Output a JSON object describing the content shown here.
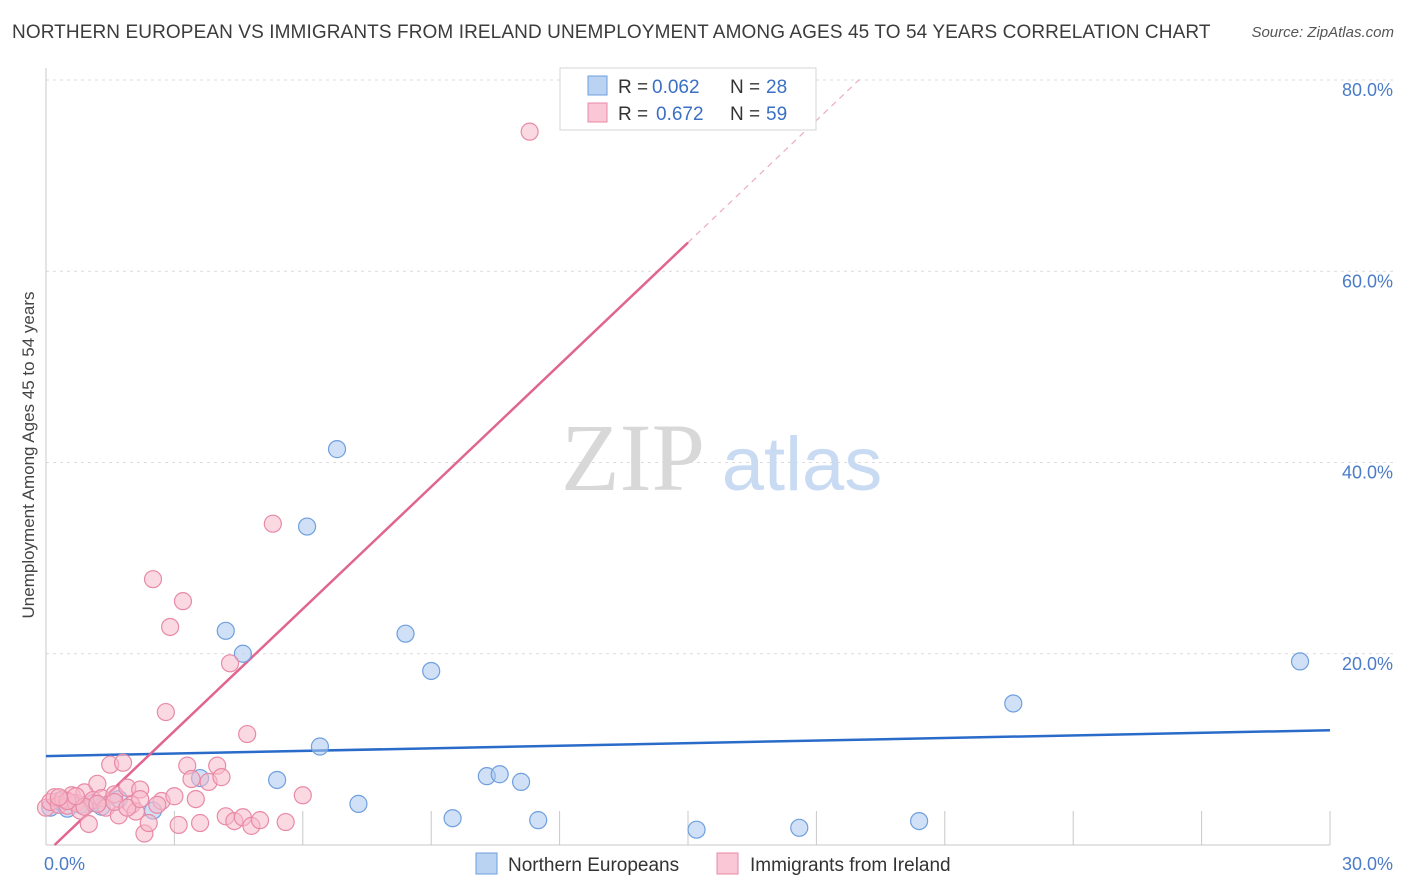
{
  "title": "NORTHERN EUROPEAN VS IMMIGRANTS FROM IRELAND UNEMPLOYMENT AMONG AGES 45 TO 54 YEARS CORRELATION CHART",
  "source": "Source: ZipAtlas.com",
  "watermark": {
    "zip": "ZIP",
    "atlas": "atlas"
  },
  "colors": {
    "blue_fill": "#a9c8f0",
    "blue_stroke": "#6f9fde",
    "blue_line": "#2a6bc9",
    "pink_fill": "#f7b9cb",
    "pink_stroke": "#e88aa6",
    "pink_line": "#e06590",
    "grid": "#dcdcdc",
    "tick_text": "#4a7cc7"
  },
  "legend": {
    "series1": {
      "r_label": "R = ",
      "r_value": "0.062",
      "n_label": "N = ",
      "n_value": "28"
    },
    "series2": {
      "r_label": "R = ",
      "r_value": "0.672",
      "n_label": "N = ",
      "n_value": "59"
    }
  },
  "chart_data": {
    "type": "scatter",
    "title": "NORTHERN EUROPEAN VS IMMIGRANTS FROM IRELAND UNEMPLOYMENT AMONG AGES 45 TO 54 YEARS CORRELATION CHART",
    "xlabel": "",
    "ylabel": "Unemployment Among Ages 45 to 54 years",
    "xlim": [
      0,
      30
    ],
    "ylim": [
      0,
      80
    ],
    "x_tick_labels": [
      "0.0%",
      "30.0%"
    ],
    "y_ticks": [
      20,
      40,
      60,
      80
    ],
    "y_tick_labels": [
      "20.0%",
      "40.0%",
      "60.0%",
      "80.0%"
    ],
    "legend_position": "top-center",
    "series": [
      {
        "name": "Northern Europeans",
        "r": 0.062,
        "n": 28,
        "trend": {
          "x0": 0,
          "y0": 9.3,
          "x1": 30,
          "y1": 12.0,
          "dashed_to": 30
        },
        "points": [
          [
            0.1,
            3.9
          ],
          [
            0.3,
            4.6
          ],
          [
            0.5,
            3.8
          ],
          [
            0.8,
            4.2
          ],
          [
            1.1,
            4.4
          ],
          [
            1.3,
            4.0
          ],
          [
            1.7,
            4.8
          ],
          [
            2.5,
            3.6
          ],
          [
            3.6,
            7.0
          ],
          [
            4.2,
            22.4
          ],
          [
            4.6,
            20.0
          ],
          [
            5.4,
            6.8
          ],
          [
            6.1,
            33.3
          ],
          [
            6.8,
            41.4
          ],
          [
            6.4,
            10.3
          ],
          [
            7.3,
            4.3
          ],
          [
            8.4,
            22.1
          ],
          [
            9.0,
            18.2
          ],
          [
            9.5,
            2.8
          ],
          [
            10.3,
            7.2
          ],
          [
            10.6,
            7.4
          ],
          [
            11.1,
            6.6
          ],
          [
            11.5,
            2.6
          ],
          [
            15.2,
            1.6
          ],
          [
            17.6,
            1.8
          ],
          [
            20.4,
            2.5
          ],
          [
            22.6,
            14.8
          ],
          [
            29.3,
            19.2
          ]
        ]
      },
      {
        "name": "Immigrants from Ireland",
        "r": 0.672,
        "n": 59,
        "trend": {
          "x0": 0.2,
          "y0": 0.0,
          "x1": 15.0,
          "y1": 63.0,
          "dashed_to": 19.0
        },
        "points": [
          [
            0.0,
            3.9
          ],
          [
            0.1,
            4.5
          ],
          [
            0.2,
            5.0
          ],
          [
            0.3,
            4.2
          ],
          [
            0.4,
            4.8
          ],
          [
            0.5,
            4.1
          ],
          [
            0.6,
            5.2
          ],
          [
            0.7,
            4.4
          ],
          [
            0.8,
            3.6
          ],
          [
            0.9,
            5.5
          ],
          [
            1.0,
            2.2
          ],
          [
            1.1,
            4.7
          ],
          [
            1.2,
            6.4
          ],
          [
            1.3,
            4.9
          ],
          [
            1.4,
            3.9
          ],
          [
            1.5,
            8.4
          ],
          [
            1.6,
            5.3
          ],
          [
            1.7,
            3.1
          ],
          [
            1.8,
            8.6
          ],
          [
            1.9,
            6.0
          ],
          [
            2.0,
            4.2
          ],
          [
            2.1,
            3.5
          ],
          [
            2.2,
            5.8
          ],
          [
            2.3,
            1.2
          ],
          [
            2.4,
            2.3
          ],
          [
            2.5,
            27.8
          ],
          [
            2.7,
            4.6
          ],
          [
            2.8,
            13.9
          ],
          [
            2.9,
            22.8
          ],
          [
            3.0,
            5.1
          ],
          [
            3.1,
            2.1
          ],
          [
            3.2,
            25.5
          ],
          [
            3.3,
            8.3
          ],
          [
            3.5,
            4.8
          ],
          [
            3.6,
            2.3
          ],
          [
            3.8,
            6.6
          ],
          [
            4.0,
            8.3
          ],
          [
            4.1,
            7.1
          ],
          [
            4.2,
            3.0
          ],
          [
            4.3,
            19.0
          ],
          [
            4.4,
            2.5
          ],
          [
            4.6,
            2.9
          ],
          [
            4.7,
            11.6
          ],
          [
            4.8,
            2.0
          ],
          [
            5.0,
            2.6
          ],
          [
            5.3,
            33.6
          ],
          [
            5.6,
            2.4
          ],
          [
            6.0,
            5.2
          ],
          [
            11.3,
            74.6
          ],
          [
            0.5,
            4.6
          ],
          [
            0.9,
            4.0
          ],
          [
            1.2,
            4.3
          ],
          [
            0.3,
            5.0
          ],
          [
            1.6,
            4.5
          ],
          [
            2.6,
            4.2
          ],
          [
            0.7,
            5.1
          ],
          [
            1.9,
            3.9
          ],
          [
            3.4,
            6.9
          ],
          [
            2.2,
            4.8
          ]
        ]
      }
    ]
  }
}
